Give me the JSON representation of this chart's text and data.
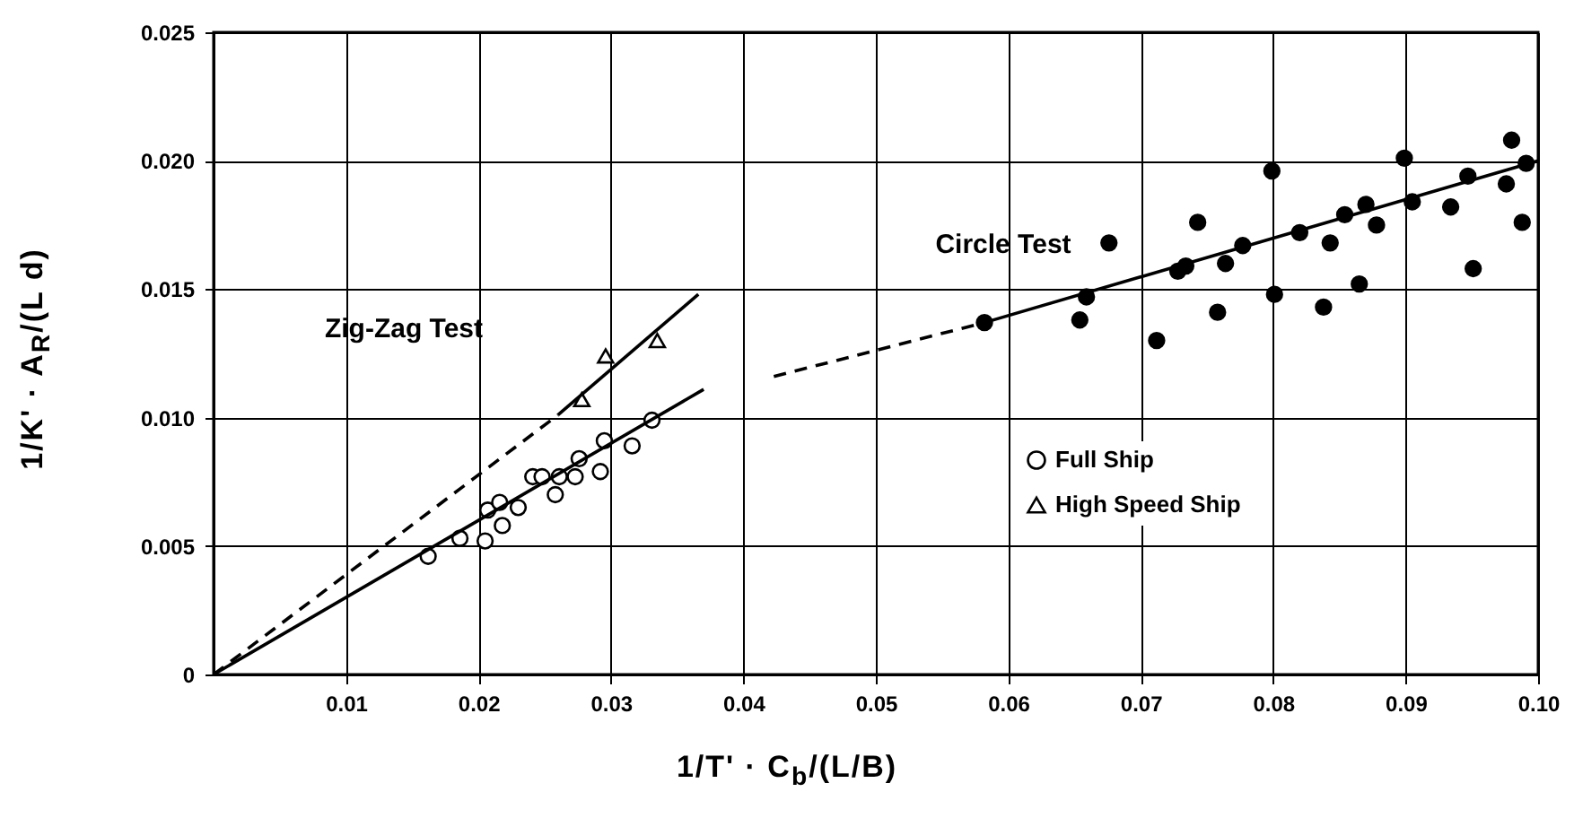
{
  "chart_data": {
    "type": "scatter",
    "xlabel": "1/T' · C$_{b}$/(L/B)",
    "ylabel": "1/K' · A$_{R}$/(L d)",
    "xlim": [
      0,
      0.1
    ],
    "ylim": [
      0,
      0.025
    ],
    "xticks": [
      {
        "value": 0.01,
        "label": "0.01"
      },
      {
        "value": 0.02,
        "label": "0.02"
      },
      {
        "value": 0.03,
        "label": "0.03"
      },
      {
        "value": 0.04,
        "label": "0.04"
      },
      {
        "value": 0.05,
        "label": "0.05"
      },
      {
        "value": 0.06,
        "label": "0.06"
      },
      {
        "value": 0.07,
        "label": "0.07"
      },
      {
        "value": 0.08,
        "label": "0.08"
      },
      {
        "value": 0.09,
        "label": "0.09"
      },
      {
        "value": 0.1,
        "label": "0.10"
      }
    ],
    "yticks": [
      {
        "value": 0,
        "label": "0"
      },
      0.005,
      {
        "value": 0.01,
        "label": "0.010"
      },
      0.015,
      {
        "value": 0.02,
        "label": "0.020"
      },
      0.025
    ],
    "grid": true,
    "legend": "center",
    "annotations": [
      "Zig-Zag Test",
      "Circle Test"
    ],
    "series": [
      {
        "name": "Full Ship",
        "marker": "circle",
        "color": "#000000",
        "x": [
          0.0162,
          0.0186,
          0.0205,
          0.0207,
          0.0216,
          0.0218,
          0.023,
          0.0241,
          0.0248,
          0.0258,
          0.0261,
          0.0273,
          0.0276,
          0.0292,
          0.0295,
          0.0316,
          0.0331
        ],
        "values": [
          0.0046,
          0.0053,
          0.0052,
          0.0064,
          0.0067,
          0.0058,
          0.0065,
          0.0077,
          0.0077,
          0.007,
          0.0077,
          0.0077,
          0.0084,
          0.0079,
          0.0091,
          0.0089,
          0.0099
        ]
      },
      {
        "marker": "circle",
        "color": "#000000",
        "x": [
          0.0582,
          0.0654,
          0.0659,
          0.0676,
          0.0712,
          0.0728,
          0.0734,
          0.0743,
          0.0758,
          0.0764,
          0.0777,
          0.0799,
          0.0801,
          0.082,
          0.0838,
          0.0843,
          0.0854,
          0.0865,
          0.087,
          0.0878,
          0.0899,
          0.0905,
          0.0934,
          0.0947,
          0.0951,
          0.0976,
          0.098,
          0.0988,
          0.0991
        ],
        "values": [
          0.0137,
          0.0138,
          0.0147,
          0.0168,
          0.013,
          0.0157,
          0.0159,
          0.0176,
          0.0141,
          0.016,
          0.0167,
          0.0196,
          0.0148,
          0.0172,
          0.0143,
          0.0168,
          0.0179,
          0.0152,
          0.0183,
          0.0175,
          0.0201,
          0.0184,
          0.0182,
          0.0194,
          0.0158,
          0.0191,
          0.0208,
          0.0176,
          0.0199
        ]
      },
      {
        "name": "High Speed Ship",
        "marker": "triangle",
        "color": "#000000",
        "x": [
          0.0278,
          0.0296,
          0.0335
        ],
        "values": [
          0.0107,
          0.0124,
          0.013
        ]
      },
      {
        "type": "line",
        "line_style": "dashed",
        "color": "#000000",
        "x": [
          0,
          0.026
        ],
        "values": [
          0,
          0.0101
        ]
      },
      {
        "type": "line",
        "line_style": "solid",
        "color": "#000000",
        "x": [
          0.026,
          0.0366
        ],
        "values": [
          0.0101,
          0.0148
        ]
      },
      {
        "type": "line",
        "line_style": "solid",
        "color": "#000000",
        "x": [
          0,
          0.037
        ],
        "values": [
          0,
          0.0111
        ]
      },
      {
        "type": "line",
        "line_style": "dashed",
        "color": "#000000",
        "x": [
          0.0423,
          0.0582
        ],
        "values": [
          0.0116,
          0.0137
        ]
      },
      {
        "type": "line",
        "line_style": "solid",
        "color": "#000000",
        "x": [
          0.0582,
          0.1
        ],
        "values": [
          0.0137,
          0.02
        ]
      }
    ]
  }
}
